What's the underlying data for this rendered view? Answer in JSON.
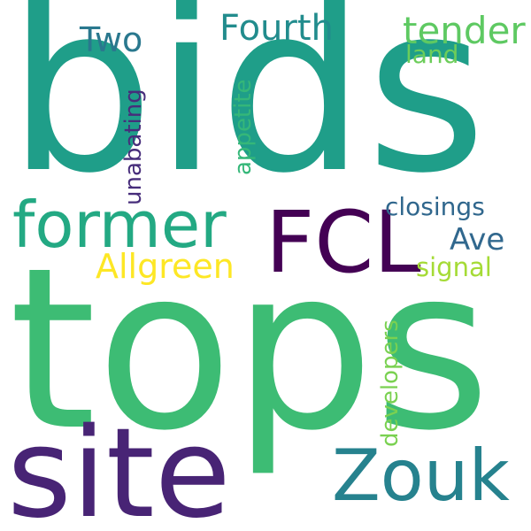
{
  "words": [
    {
      "text": "bids",
      "color": "#1f9e89"
    },
    {
      "text": "tops",
      "color": "#3dbc74"
    },
    {
      "text": "site",
      "color": "#482475"
    },
    {
      "text": "FCL",
      "color": "#440154"
    },
    {
      "text": "former",
      "color": "#23a983"
    },
    {
      "text": "Zouk",
      "color": "#26828e"
    },
    {
      "text": "Allgreen",
      "color": "#fde725"
    },
    {
      "text": "Fourth",
      "color": "#228c8d"
    },
    {
      "text": "Two",
      "color": "#2a788e"
    },
    {
      "text": "tender",
      "color": "#5ec962"
    },
    {
      "text": "land",
      "color": "#6ccd5a"
    },
    {
      "text": "closings",
      "color": "#30678d"
    },
    {
      "text": "Ave",
      "color": "#31688e"
    },
    {
      "text": "signal",
      "color": "#a5db36"
    },
    {
      "text": "appetite",
      "color": "#35b779"
    },
    {
      "text": "unabating",
      "color": "#472d7b"
    },
    {
      "text": "developers",
      "color": "#7ad151"
    }
  ]
}
